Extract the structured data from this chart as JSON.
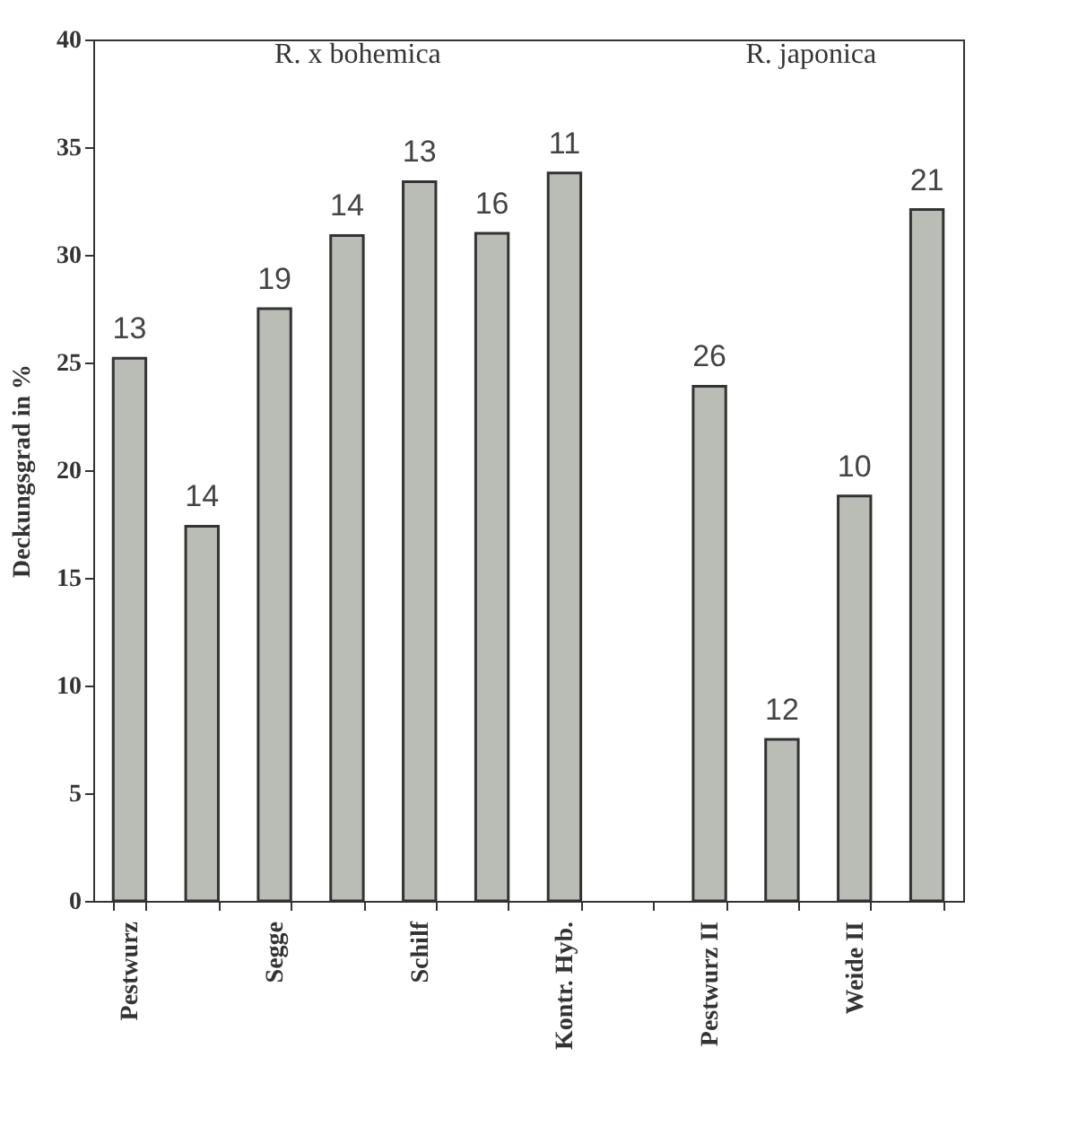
{
  "chart_data": {
    "type": "bar",
    "ylabel": "Deckungsgrad in %",
    "categories": [
      "Pestwurz",
      null,
      "Segge",
      null,
      "Schilf",
      null,
      "Kontr. Hyb.",
      null,
      "Pestwurz II",
      null,
      "Weide II",
      null
    ],
    "values": [
      25.2,
      17.4,
      27.5,
      30.9,
      33.4,
      31.0,
      33.8,
      null,
      23.9,
      7.5,
      18.8,
      32.1
    ],
    "color": "#b9bdb6",
    "ylim": [
      0,
      40
    ],
    "yticks": [
      0,
      5,
      10,
      15,
      20,
      25,
      30,
      35,
      40
    ],
    "annotations": [
      "R. x bohemica",
      "R. japonica",
      {
        "text": "13",
        "x": "Pestwurz",
        "y": 25.2
      },
      {
        "text": "14",
        "y": 17.4
      },
      {
        "text": "19",
        "x": "Segge",
        "y": 27.5
      },
      {
        "text": "14",
        "y": 30.9
      },
      {
        "text": "13",
        "x": "Schilf",
        "y": 33.4
      },
      {
        "text": "16",
        "y": 31.0
      },
      {
        "text": "11",
        "x": "Kontr. Hyb.",
        "y": 33.8
      },
      {
        "text": "26",
        "x": "Pestwurz II",
        "y": 23.9
      },
      {
        "text": "12",
        "y": 7.5
      },
      {
        "text": "10",
        "x": "Weide II",
        "y": 18.8
      },
      {
        "text": "21",
        "y": 32.1
      }
    ],
    "grid": false
  }
}
